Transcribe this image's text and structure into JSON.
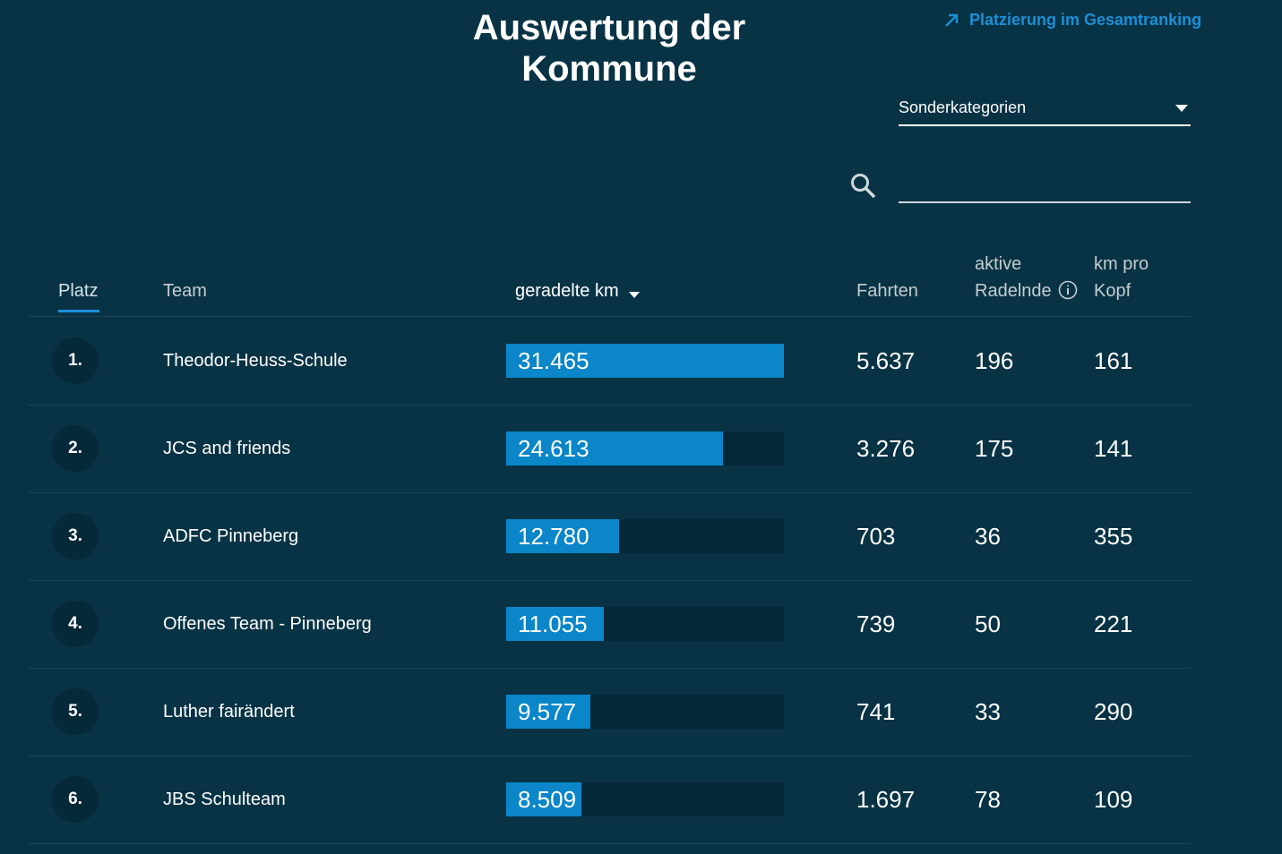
{
  "header": {
    "title": "Auswertung der Kommune",
    "link": "Platzierung im Gesamtranking",
    "select": "Sonderkategorien"
  },
  "table": {
    "columns": [
      "Platz",
      "Team",
      "geradelte km",
      "Fahrten",
      "aktive Radelnde",
      "km pro Kopf"
    ],
    "rows": [
      {
        "rank": "1.",
        "team": "Theodor-Heuss-Schule",
        "km": {
          "value": 31465,
          "label": "31.465"
        },
        "fahrten": "5.637",
        "aktive": "196",
        "kopf": "161"
      },
      {
        "rank": "2.",
        "team": "JCS and friends",
        "km": {
          "value": 24613,
          "label": "24.613"
        },
        "fahrten": "3.276",
        "aktive": "175",
        "kopf": "141"
      },
      {
        "rank": "3.",
        "team": "ADFC Pinneberg",
        "km": {
          "value": 12780,
          "label": "12.780"
        },
        "fahrten": "703",
        "aktive": "36",
        "kopf": "355"
      },
      {
        "rank": "4.",
        "team": "Offenes Team - Pinneberg",
        "km": {
          "value": 11055,
          "label": "11.055"
        },
        "fahrten": "739",
        "aktive": "50",
        "kopf": "221"
      },
      {
        "rank": "5.",
        "team": "Luther fairändert",
        "km": {
          "value": 9577,
          "label": "9.577"
        },
        "fahrten": "741",
        "aktive": "33",
        "kopf": "290"
      },
      {
        "rank": "6.",
        "team": "JBS Schulteam",
        "km": {
          "value": 8509,
          "label": "8.509"
        },
        "fahrten": "1.697",
        "aktive": "78",
        "kopf": "109"
      }
    ]
  }
}
